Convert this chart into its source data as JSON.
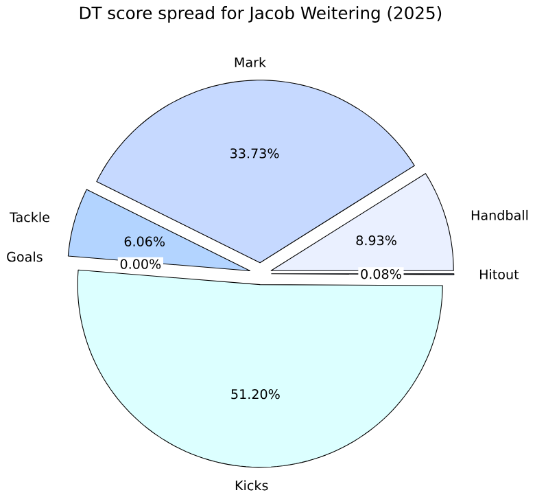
{
  "chart_data": {
    "type": "pie",
    "title": "DT score spread for Jacob Weitering (2025)",
    "categories": [
      "Handball",
      "Mark",
      "Tackle",
      "Goals",
      "Kicks",
      "Hitout"
    ],
    "values": [
      8.93,
      33.73,
      6.06,
      0.0,
      51.2,
      0.08
    ],
    "colors": [
      "#eaf0ff",
      "#c6d9ff",
      "#b3d4ff",
      "#8fb8f0",
      "#dcffff",
      "#a8c8ff"
    ],
    "value_labels": [
      "8.93%",
      "33.73%",
      "6.06%",
      "0.00%",
      "51.20%",
      "0.08%"
    ]
  }
}
